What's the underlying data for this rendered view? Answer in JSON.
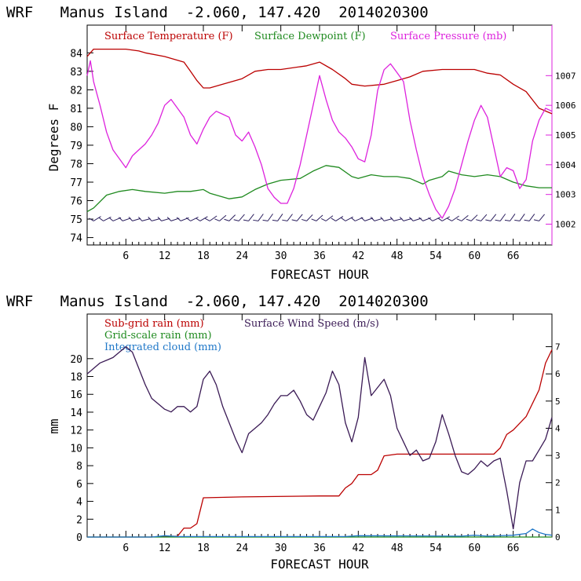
{
  "chart_data": [
    {
      "type": "line",
      "title": "WRF   Manus Island  -2.060, 147.420  2014020300",
      "xlabel": "FORECAST HOUR",
      "ylabel": "Degrees F",
      "x_ticks": [
        6,
        12,
        18,
        24,
        30,
        36,
        42,
        48,
        54,
        60,
        66
      ],
      "xlim": [
        0,
        72
      ],
      "ylim": [
        73.6,
        85.5
      ],
      "y_ticks": [
        74,
        75,
        76,
        77,
        78,
        79,
        80,
        81,
        82,
        83,
        84
      ],
      "y2lim": [
        1001.3,
        1008.7
      ],
      "y2_ticks": [
        1002,
        1003,
        1004,
        1005,
        1006,
        1007
      ],
      "legend": [
        "Surface Temperature (F)",
        "Surface Dewpoint (F)",
        "Surface Pressure (mb)"
      ],
      "colors": {
        "temperature": "#bb0000",
        "dewpoint": "#1f8a1f",
        "pressure": "#dd22dd",
        "wind_barbs": "#2b1f5e"
      },
      "series": [
        {
          "name": "Surface Temperature (F)",
          "axis": "left",
          "x": [
            0,
            1,
            2,
            4,
            6,
            8,
            9,
            12,
            15,
            16,
            17,
            18,
            19,
            21,
            24,
            26,
            28,
            30,
            34,
            36,
            38,
            40,
            41,
            43,
            46,
            48,
            50,
            52,
            55,
            58,
            60,
            62,
            64,
            66,
            68,
            70,
            72
          ],
          "y": [
            83.8,
            84.2,
            84.2,
            84.2,
            84.2,
            84.1,
            84.0,
            83.8,
            83.5,
            83.0,
            82.5,
            82.1,
            82.1,
            82.3,
            82.6,
            83.0,
            83.1,
            83.1,
            83.3,
            83.5,
            83.1,
            82.6,
            82.3,
            82.2,
            82.3,
            82.5,
            82.7,
            83.0,
            83.1,
            83.1,
            83.1,
            82.9,
            82.8,
            82.3,
            81.9,
            81.0,
            80.7
          ]
        },
        {
          "name": "Surface Dewpoint (F)",
          "axis": "left",
          "x": [
            0,
            1,
            3,
            5,
            7,
            9,
            12,
            14,
            16,
            18,
            19,
            20,
            22,
            24,
            26,
            28,
            30,
            33,
            35,
            37,
            39,
            41,
            42,
            44,
            46,
            48,
            50,
            52,
            53,
            55,
            56,
            58,
            60,
            62,
            64,
            66,
            68,
            70,
            72
          ],
          "y": [
            75.4,
            75.6,
            76.3,
            76.5,
            76.6,
            76.5,
            76.4,
            76.5,
            76.5,
            76.6,
            76.4,
            76.3,
            76.1,
            76.2,
            76.6,
            76.9,
            77.1,
            77.2,
            77.6,
            77.9,
            77.8,
            77.3,
            77.2,
            77.4,
            77.3,
            77.3,
            77.2,
            76.9,
            77.1,
            77.3,
            77.6,
            77.4,
            77.3,
            77.4,
            77.3,
            77.0,
            76.8,
            76.7,
            76.7
          ]
        },
        {
          "name": "Surface Pressure (mb)",
          "axis": "right",
          "x": [
            0,
            0.5,
            1,
            2,
            3,
            4,
            5,
            6,
            7,
            8,
            9,
            10,
            11,
            12,
            13,
            14,
            15,
            16,
            17,
            18,
            19,
            20,
            21,
            22,
            23,
            24,
            25,
            26,
            27,
            28,
            29,
            30,
            31,
            32,
            33,
            34,
            35,
            36,
            37,
            38,
            39,
            40,
            41,
            42,
            43,
            44,
            45,
            46,
            47,
            48,
            49,
            50,
            51,
            52,
            53,
            54,
            55,
            56,
            57,
            58,
            59,
            60,
            61,
            62,
            63,
            64,
            65,
            66,
            67,
            68,
            69,
            70,
            71,
            72
          ],
          "y": [
            1007.0,
            1007.5,
            1006.8,
            1006.0,
            1005.1,
            1004.5,
            1004.2,
            1003.9,
            1004.3,
            1004.5,
            1004.7,
            1005.0,
            1005.4,
            1006.0,
            1006.2,
            1005.9,
            1005.6,
            1005.0,
            1004.7,
            1005.2,
            1005.6,
            1005.8,
            1005.7,
            1005.6,
            1005.0,
            1004.8,
            1005.1,
            1004.6,
            1004.0,
            1003.2,
            1002.9,
            1002.7,
            1002.7,
            1003.2,
            1004.0,
            1005.0,
            1006.0,
            1007.0,
            1006.2,
            1005.5,
            1005.1,
            1004.9,
            1004.6,
            1004.2,
            1004.1,
            1005.0,
            1006.5,
            1007.2,
            1007.4,
            1007.1,
            1006.8,
            1005.5,
            1004.5,
            1003.6,
            1003.0,
            1002.5,
            1002.2,
            1002.6,
            1003.2,
            1004.0,
            1004.8,
            1005.5,
            1006.0,
            1005.6,
            1004.6,
            1003.6,
            1003.9,
            1003.8,
            1003.2,
            1003.5,
            1004.8,
            1005.5,
            1005.9,
            1005.8
          ]
        }
      ]
    },
    {
      "type": "line",
      "title": "WRF   Manus Island  -2.060, 147.420  2014020300",
      "xlabel": "FORECAST HOUR",
      "ylabel": "mm",
      "x_ticks": [
        6,
        12,
        18,
        24,
        30,
        36,
        42,
        48,
        54,
        60,
        66
      ],
      "xlim": [
        0,
        72
      ],
      "ylim": [
        0,
        25
      ],
      "y_ticks": [
        0,
        2,
        4,
        6,
        8,
        10,
        12,
        14,
        16,
        18,
        20
      ],
      "y2lim": [
        0,
        8.2
      ],
      "y2_ticks": [
        0,
        1,
        2,
        3,
        4,
        5,
        6,
        7
      ],
      "legend": [
        "Sub-grid rain (mm)",
        "Grid-scale rain (mm)",
        "Integrated cloud (mm)",
        "Surface Wind Speed (m/s)"
      ],
      "colors": {
        "subgrid_rain": "#bb0000",
        "grid_rain": "#1f8a1f",
        "cloud": "#1f77c8",
        "wind": "#3a1a55"
      },
      "series": [
        {
          "name": "Sub-grid rain (mm)",
          "axis": "left",
          "x": [
            0,
            10,
            11,
            14,
            15,
            16,
            17,
            18,
            24,
            36,
            39,
            40,
            41,
            42,
            44,
            45,
            46,
            48,
            54,
            60,
            62,
            63,
            64,
            65,
            66,
            68,
            70,
            71,
            72
          ],
          "y": [
            0,
            0,
            0.05,
            0.1,
            1.0,
            1.0,
            1.5,
            4.4,
            4.5,
            4.6,
            4.6,
            5.5,
            6.0,
            7.0,
            7.0,
            7.5,
            9.1,
            9.3,
            9.3,
            9.3,
            9.3,
            9.3,
            10.0,
            11.5,
            12.0,
            13.5,
            16.5,
            19.5,
            21.0
          ]
        },
        {
          "name": "Grid-scale rain (mm)",
          "axis": "left",
          "x": [
            0,
            72
          ],
          "y": [
            0,
            0
          ]
        },
        {
          "name": "Integrated cloud (mm)",
          "axis": "left",
          "x": [
            0,
            10,
            12,
            14,
            40,
            42,
            58,
            60,
            62,
            66,
            68,
            69,
            70,
            71,
            72
          ],
          "y": [
            0,
            0,
            0.15,
            0.05,
            0.05,
            0.15,
            0.1,
            0.2,
            0.1,
            0.2,
            0.4,
            0.9,
            0.5,
            0.3,
            0.2
          ]
        },
        {
          "name": "Surface Wind Speed (m/s)",
          "axis": "right",
          "x": [
            0,
            1,
            2,
            3,
            4,
            5,
            6,
            7,
            8,
            9,
            10,
            11,
            12,
            13,
            14,
            15,
            16,
            17,
            18,
            19,
            20,
            21,
            22,
            23,
            24,
            25,
            26,
            27,
            28,
            29,
            30,
            31,
            32,
            33,
            34,
            35,
            36,
            37,
            38,
            39,
            40,
            41,
            42,
            43,
            44,
            45,
            46,
            47,
            48,
            49,
            50,
            51,
            52,
            53,
            54,
            55,
            56,
            57,
            58,
            59,
            60,
            61,
            62,
            63,
            64,
            65,
            66,
            67,
            68,
            69,
            70,
            71,
            72
          ],
          "y": [
            6.0,
            6.2,
            6.4,
            6.5,
            6.6,
            6.8,
            7.0,
            6.8,
            6.2,
            5.6,
            5.1,
            4.9,
            4.7,
            4.6,
            4.8,
            4.8,
            4.6,
            4.8,
            5.8,
            6.1,
            5.6,
            4.8,
            4.2,
            3.6,
            3.1,
            3.8,
            4.0,
            4.2,
            4.5,
            4.9,
            5.2,
            5.2,
            5.4,
            5.0,
            4.5,
            4.3,
            4.8,
            5.3,
            6.1,
            5.6,
            4.2,
            3.5,
            4.4,
            6.6,
            5.2,
            5.5,
            5.8,
            5.2,
            4.0,
            3.5,
            3.0,
            3.2,
            2.8,
            2.9,
            3.5,
            4.5,
            3.8,
            3.0,
            2.4,
            2.3,
            2.5,
            2.8,
            2.6,
            2.8,
            2.9,
            1.7,
            0.3,
            2.0,
            2.8,
            2.8,
            3.2,
            3.6,
            4.4
          ]
        }
      ]
    }
  ]
}
